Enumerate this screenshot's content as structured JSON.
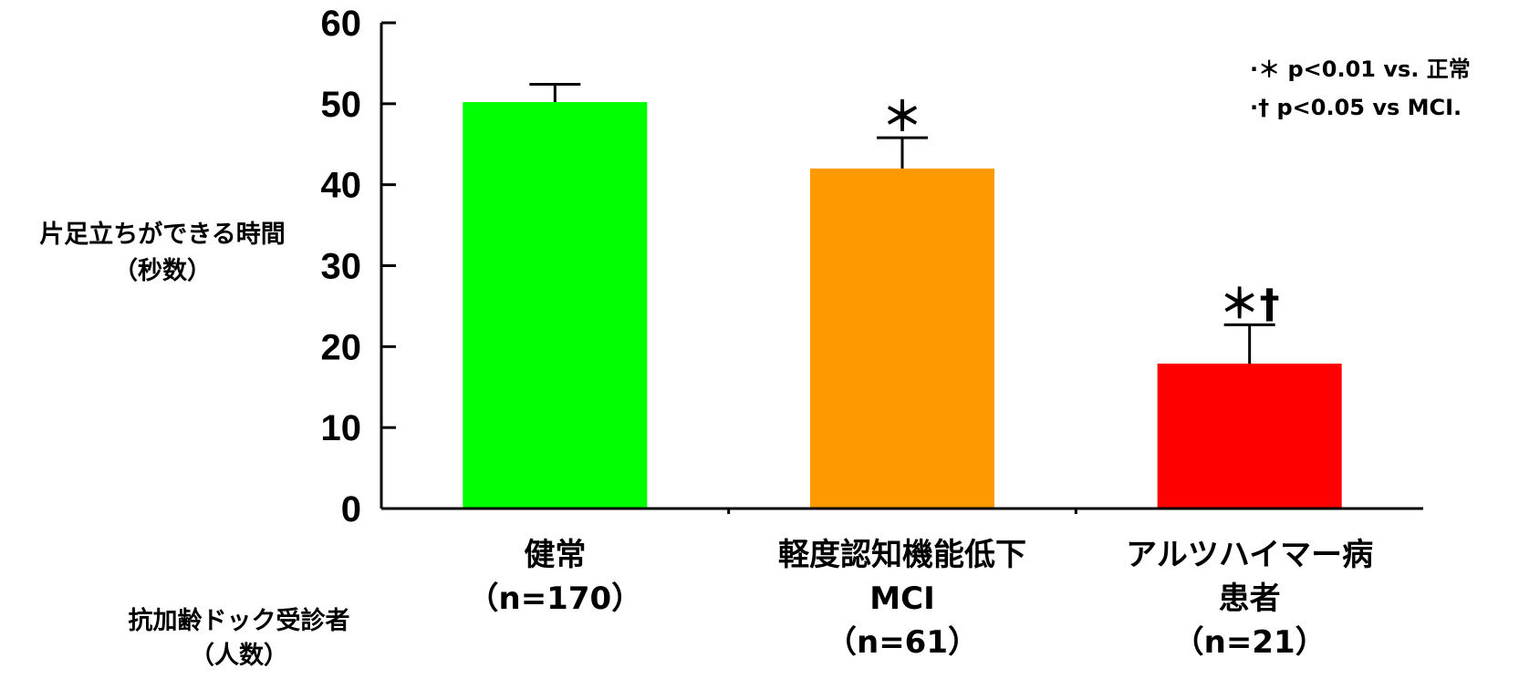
{
  "chart_data": {
    "type": "bar",
    "categories": [
      {
        "lines": [
          "健常",
          "（n=170）"
        ]
      },
      {
        "lines": [
          "軽度認知機能低下",
          "MCI",
          "（n=61）"
        ]
      },
      {
        "lines": [
          "アルツハイマー病",
          "患者",
          "（n=21）"
        ]
      }
    ],
    "values": [
      50.2,
      42.0,
      17.9
    ],
    "errors": [
      2.2,
      3.8,
      4.8
    ],
    "colors": [
      "#00ff00",
      "#ff9900",
      "#ff0000"
    ],
    "significance": [
      "",
      "＊",
      "＊†"
    ],
    "ylabel": [
      "片足立ちができる時間",
      "（秒数）"
    ],
    "xgroup_label": [
      "抗加齢ドック受診者",
      "（人数）"
    ],
    "ylim": [
      0,
      60
    ],
    "yticks": [
      0,
      10,
      20,
      30,
      40,
      50,
      60
    ],
    "grid": false,
    "legend": {
      "placement": "top-right",
      "items": [
        "·＊  p<0.01 vs. 正常",
        "·†  p<0.05 vs MCI."
      ]
    }
  }
}
